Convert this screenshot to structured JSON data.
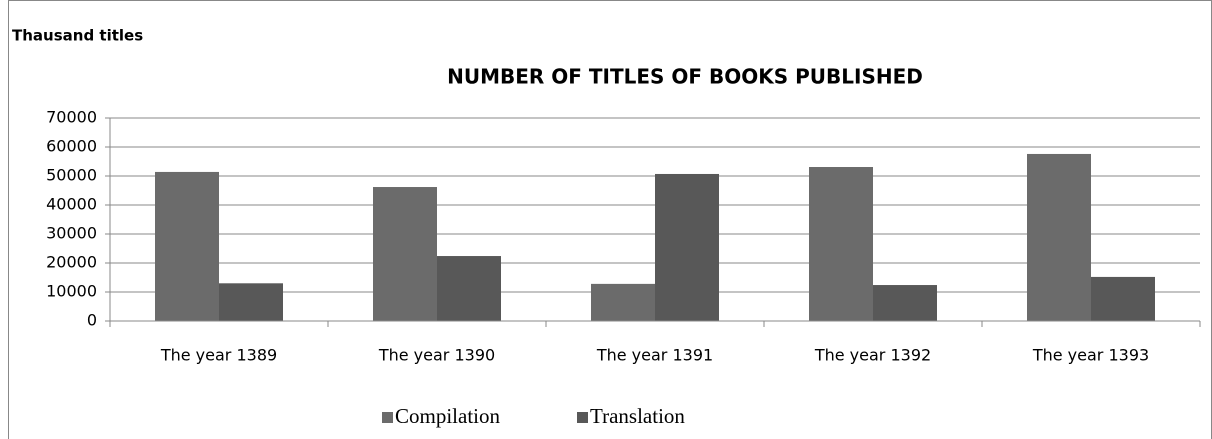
{
  "chart_data": {
    "type": "bar",
    "title": "NUMBER OF TITLES OF BOOKS  PUBLISHED",
    "y_label": "Thausand titles",
    "categories": [
      "The year 1389",
      "The year 1390",
      "The year 1391",
      "The year 1392",
      "The year 1393"
    ],
    "series": [
      {
        "name": "Compilation",
        "color": "#6b6b6b",
        "values": [
          51400,
          46200,
          12800,
          53100,
          57600
        ]
      },
      {
        "name": "Translation",
        "color": "#585858",
        "values": [
          13000,
          22400,
          50700,
          12400,
          15200
        ]
      }
    ],
    "ylim": [
      0,
      70000
    ],
    "yticks": [
      0,
      10000,
      20000,
      30000,
      40000,
      50000,
      60000,
      70000
    ],
    "grid": true,
    "legend": "bottom"
  }
}
